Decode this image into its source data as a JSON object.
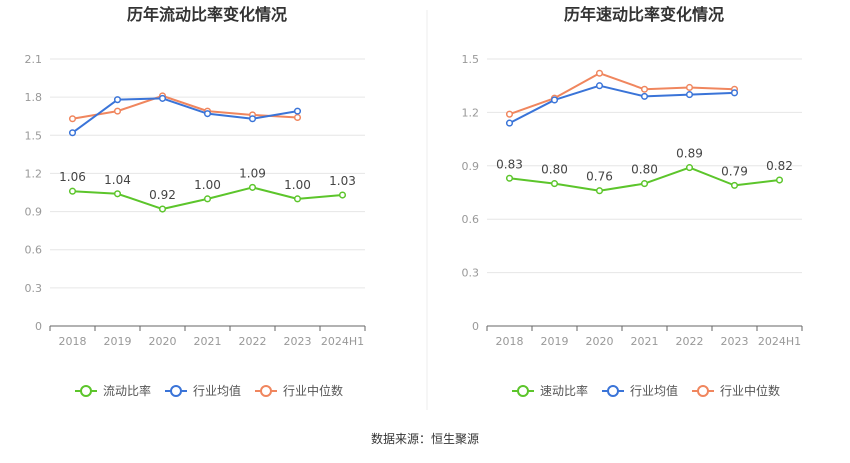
{
  "source": "数据来源：恒生聚源",
  "chart_data": [
    {
      "type": "line",
      "title": "历年流动比率变化情况",
      "categories": [
        "2018",
        "2019",
        "2020",
        "2021",
        "2022",
        "2023",
        "2024H1"
      ],
      "y_ticks": [
        "0",
        "0.3",
        "0.6",
        "0.9",
        "1.2",
        "1.5",
        "1.8",
        "2.1"
      ],
      "ylim": [
        0,
        2.1
      ],
      "grid": true,
      "legend_position": "bottom",
      "series": [
        {
          "name": "流动比率",
          "color": "#5cc52b",
          "values": [
            1.06,
            1.04,
            0.92,
            1.0,
            1.09,
            1.0,
            1.03
          ],
          "labels": [
            "1.06",
            "1.04",
            "0.92",
            "1.00",
            "1.09",
            "1.00",
            "1.03"
          ],
          "show_labels": true
        },
        {
          "name": "行业均值",
          "color": "#3a74d8",
          "values": [
            1.52,
            1.78,
            1.79,
            1.67,
            1.63,
            1.69,
            null
          ],
          "show_labels": false
        },
        {
          "name": "行业中位数",
          "color": "#f0865e",
          "values": [
            1.63,
            1.69,
            1.81,
            1.69,
            1.66,
            1.64,
            null
          ],
          "show_labels": false
        }
      ]
    },
    {
      "type": "line",
      "title": "历年速动比率变化情况",
      "categories": [
        "2018",
        "2019",
        "2020",
        "2021",
        "2022",
        "2023",
        "2024H1"
      ],
      "y_ticks": [
        "0",
        "0.3",
        "0.6",
        "0.9",
        "1.2",
        "1.5"
      ],
      "ylim": [
        0,
        1.5
      ],
      "grid": true,
      "legend_position": "bottom",
      "series": [
        {
          "name": "速动比率",
          "color": "#5cc52b",
          "values": [
            0.83,
            0.8,
            0.76,
            0.8,
            0.89,
            0.79,
            0.82
          ],
          "labels": [
            "0.83",
            "0.80",
            "0.76",
            "0.80",
            "0.89",
            "0.79",
            "0.82"
          ],
          "show_labels": true
        },
        {
          "name": "行业均值",
          "color": "#3a74d8",
          "values": [
            1.14,
            1.27,
            1.35,
            1.29,
            1.3,
            1.31,
            null
          ],
          "show_labels": false
        },
        {
          "name": "行业中位数",
          "color": "#f0865e",
          "values": [
            1.19,
            1.28,
            1.42,
            1.33,
            1.34,
            1.33,
            null
          ],
          "show_labels": false
        }
      ]
    }
  ]
}
